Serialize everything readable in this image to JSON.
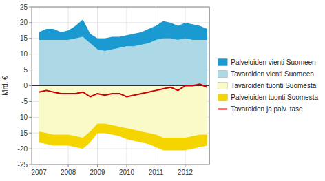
{
  "chart_data": {
    "type": "area",
    "stacked": true,
    "ylabel": "Mrd. €",
    "x": [
      2007.0,
      2007.25,
      2007.5,
      2007.75,
      2008.0,
      2008.25,
      2008.5,
      2008.75,
      2009.0,
      2009.25,
      2009.5,
      2009.75,
      2010.0,
      2010.25,
      2010.5,
      2010.75,
      2011.0,
      2011.25,
      2011.5,
      2011.75,
      2012.0,
      2012.25,
      2012.5,
      2012.75
    ],
    "xlim": [
      2006.75,
      2012.83
    ],
    "xticks": [
      2007,
      2008,
      2009,
      2010,
      2011,
      2012
    ],
    "ylim": [
      -25,
      25
    ],
    "yticks": [
      -25,
      -20,
      -15,
      -10,
      -5,
      0,
      5,
      10,
      15,
      20,
      25
    ],
    "grid": true,
    "legend": "right",
    "series": [
      {
        "name": "Tavaroiden vienti Suomeen",
        "color": "#ADD8E6",
        "values": [
          14.5,
          14.5,
          14.5,
          14.5,
          14.5,
          15.0,
          15.5,
          13.5,
          11.5,
          11.0,
          11.5,
          12.0,
          12.5,
          12.5,
          13.0,
          13.5,
          14.5,
          15.0,
          15.0,
          14.5,
          15.0,
          14.5,
          14.5,
          14.5
        ]
      },
      {
        "name": "Palveluiden vienti Suomeen",
        "color": "#1B9AD2",
        "values": [
          2.5,
          3.5,
          3.5,
          2.5,
          3.0,
          4.0,
          5.5,
          3.0,
          3.5,
          4.0,
          4.0,
          3.5,
          3.5,
          4.0,
          4.0,
          4.5,
          4.5,
          5.5,
          5.0,
          4.5,
          5.0,
          5.0,
          4.5,
          3.5
        ]
      },
      {
        "name": "Tavaroiden tuonti Suomesta",
        "color": "#FAFAC8",
        "values": [
          -14.5,
          -15.0,
          -15.5,
          -15.5,
          -15.5,
          -16.0,
          -16.5,
          -14.5,
          -12.0,
          -12.0,
          -12.5,
          -13.0,
          -13.5,
          -14.0,
          -14.5,
          -15.0,
          -15.5,
          -16.5,
          -16.5,
          -16.5,
          -16.5,
          -16.0,
          -15.5,
          -15.5
        ]
      },
      {
        "name": "Palveluiden tuonti Suomesta",
        "color": "#F5D500",
        "values": [
          -3.5,
          -3.5,
          -3.5,
          -3.5,
          -3.5,
          -3.5,
          -3.5,
          -3.5,
          -3.0,
          -3.0,
          -3.0,
          -3.0,
          -3.5,
          -3.5,
          -3.5,
          -3.5,
          -4.0,
          -4.0,
          -4.0,
          -4.0,
          -4.0,
          -4.0,
          -4.0,
          -3.5
        ]
      },
      {
        "name": "Tavaroiden ja palv. tase",
        "type": "line",
        "color": "#CC0000",
        "values": [
          -2.0,
          -1.5,
          -2.0,
          -2.5,
          -2.5,
          -2.5,
          -2.0,
          -3.5,
          -2.5,
          -3.0,
          -2.5,
          -2.5,
          -3.5,
          -3.0,
          -2.5,
          -2.0,
          -1.5,
          -1.0,
          -0.5,
          -1.5,
          0.0,
          0.0,
          0.5,
          -0.5
        ]
      }
    ]
  }
}
